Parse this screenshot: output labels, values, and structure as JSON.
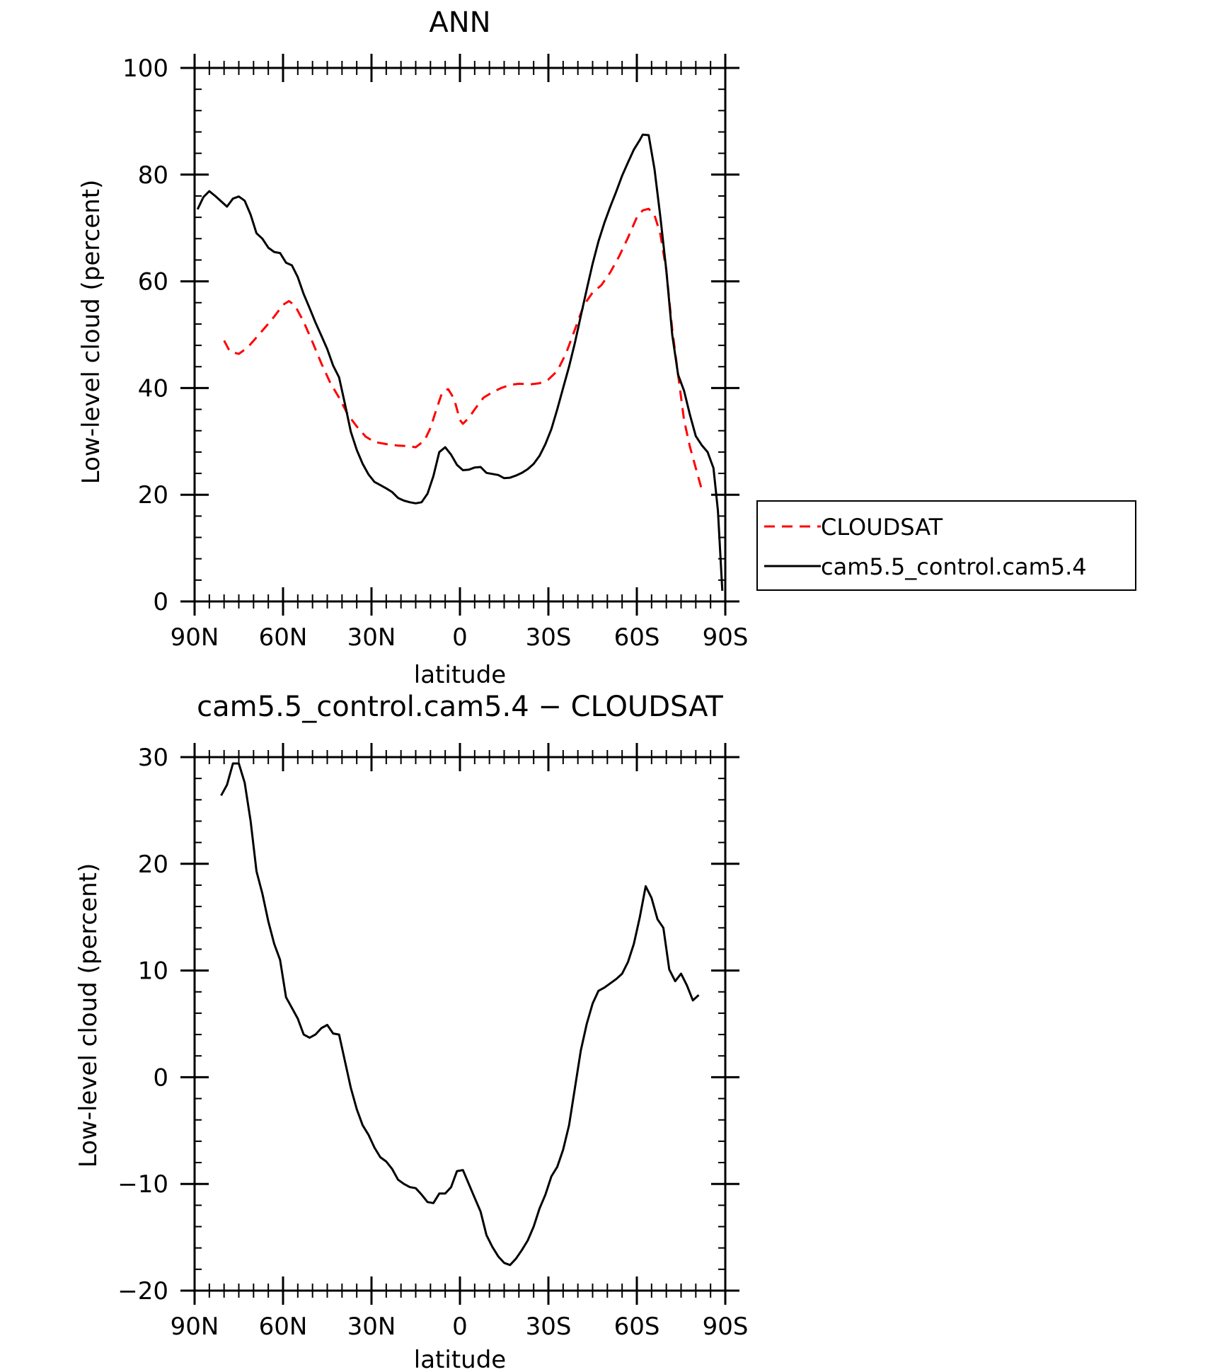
{
  "chart_data": [
    {
      "type": "line",
      "title": "ANN",
      "xlabel": "latitude",
      "ylabel": "Low-level cloud (percent)",
      "xlim": [
        90,
        -90
      ],
      "ylim": [
        0,
        100
      ],
      "x_tick_values": [
        90,
        60,
        30,
        0,
        -30,
        -60,
        -90
      ],
      "x_tick_labels": [
        "90N",
        "60N",
        "30N",
        "0",
        "30S",
        "60S",
        "90S"
      ],
      "y_ticks": [
        0,
        20,
        40,
        60,
        80,
        100
      ],
      "legend_position": "right",
      "series": [
        {
          "name": "CLOUDSAT",
          "color": "#ff0000",
          "dash": "dashed",
          "points": [
            [
              80,
              48.9
            ],
            [
              78,
              46.8
            ],
            [
              75,
              46.4
            ],
            [
              72,
              47.6
            ],
            [
              69,
              49.5
            ],
            [
              66,
              51.4
            ],
            [
              63,
              53.4
            ],
            [
              60,
              55.6
            ],
            [
              58,
              56.3
            ],
            [
              56,
              55.5
            ],
            [
              53,
              52.4
            ],
            [
              50,
              48.6
            ],
            [
              47,
              44.6
            ],
            [
              44,
              41.0
            ],
            [
              41,
              38.2
            ],
            [
              38,
              35.0
            ],
            [
              35,
              32.8
            ],
            [
              32,
              30.9
            ],
            [
              29,
              29.9
            ],
            [
              25,
              29.5
            ],
            [
              21,
              29.2
            ],
            [
              17,
              29.1
            ],
            [
              15,
              28.9
            ],
            [
              12,
              30.2
            ],
            [
              10,
              32.5
            ],
            [
              8,
              36.0
            ],
            [
              6,
              39.2
            ],
            [
              4,
              39.8
            ],
            [
              2,
              38.0
            ],
            [
              0,
              34.0
            ],
            [
              -1,
              33.3
            ],
            [
              -3,
              34.4
            ],
            [
              -5,
              36.0
            ],
            [
              -8,
              38.2
            ],
            [
              -11,
              39.2
            ],
            [
              -14,
              40.0
            ],
            [
              -17,
              40.6
            ],
            [
              -20,
              40.8
            ],
            [
              -24,
              40.7
            ],
            [
              -27,
              40.9
            ],
            [
              -30,
              41.6
            ],
            [
              -33,
              43.2
            ],
            [
              -36,
              46.5
            ],
            [
              -39,
              51.0
            ],
            [
              -42,
              55.5
            ],
            [
              -45,
              57.9
            ],
            [
              -48,
              59.3
            ],
            [
              -51,
              61.7
            ],
            [
              -54,
              64.7
            ],
            [
              -57,
              68.2
            ],
            [
              -60,
              72.0
            ],
            [
              -62,
              73.3
            ],
            [
              -64,
              73.6
            ],
            [
              -66,
              72.4
            ],
            [
              -68,
              68.8
            ],
            [
              -70,
              62.0
            ],
            [
              -72,
              51.0
            ],
            [
              -74,
              42.5
            ],
            [
              -76,
              34.0
            ],
            [
              -78,
              29.0
            ],
            [
              -80,
              25.0
            ],
            [
              -82,
              21.0
            ]
          ]
        },
        {
          "name": "cam5.5_control.cam5.4",
          "color": "#000000",
          "dash": "solid",
          "points": [
            [
              89,
              73.5
            ],
            [
              87,
              75.8
            ],
            [
              85,
              76.9
            ],
            [
              83,
              76.0
            ],
            [
              81,
              75.0
            ],
            [
              79,
              74.0
            ],
            [
              77,
              75.5
            ],
            [
              75,
              75.9
            ],
            [
              73,
              75.1
            ],
            [
              71,
              72.5
            ],
            [
              69,
              69.0
            ],
            [
              67,
              68.0
            ],
            [
              65,
              66.3
            ],
            [
              63,
              65.5
            ],
            [
              61,
              65.3
            ],
            [
              59,
              63.5
            ],
            [
              57,
              63.0
            ],
            [
              55,
              60.8
            ],
            [
              53,
              57.6
            ],
            [
              51,
              55.0
            ],
            [
              49,
              52.3
            ],
            [
              47,
              49.8
            ],
            [
              45,
              47.3
            ],
            [
              43,
              44.2
            ],
            [
              41,
              42.0
            ],
            [
              39,
              37.0
            ],
            [
              37,
              31.8
            ],
            [
              35,
              28.4
            ],
            [
              33,
              25.8
            ],
            [
              31,
              23.8
            ],
            [
              29,
              22.4
            ],
            [
              27,
              21.8
            ],
            [
              25,
              21.2
            ],
            [
              23,
              20.5
            ],
            [
              21,
              19.4
            ],
            [
              19,
              18.9
            ],
            [
              17,
              18.6
            ],
            [
              15,
              18.4
            ],
            [
              13,
              18.6
            ],
            [
              11,
              20.2
            ],
            [
              9,
              23.5
            ],
            [
              7,
              28.0
            ],
            [
              5,
              28.9
            ],
            [
              3,
              27.5
            ],
            [
              1,
              25.6
            ],
            [
              -1,
              24.6
            ],
            [
              -3,
              24.7
            ],
            [
              -5,
              25.1
            ],
            [
              -7,
              25.2
            ],
            [
              -9,
              24.1
            ],
            [
              -11,
              23.9
            ],
            [
              -13,
              23.7
            ],
            [
              -15,
              23.1
            ],
            [
              -17,
              23.2
            ],
            [
              -19,
              23.6
            ],
            [
              -21,
              24.1
            ],
            [
              -23,
              24.8
            ],
            [
              -25,
              25.8
            ],
            [
              -27,
              27.3
            ],
            [
              -29,
              29.5
            ],
            [
              -31,
              32.3
            ],
            [
              -33,
              36.0
            ],
            [
              -35,
              40.0
            ],
            [
              -37,
              44.0
            ],
            [
              -39,
              48.5
            ],
            [
              -41,
              53.5
            ],
            [
              -43,
              58.5
            ],
            [
              -45,
              63.3
            ],
            [
              -47,
              67.5
            ],
            [
              -49,
              71.0
            ],
            [
              -51,
              74.0
            ],
            [
              -53,
              76.8
            ],
            [
              -55,
              79.8
            ],
            [
              -57,
              82.3
            ],
            [
              -59,
              84.7
            ],
            [
              -61,
              86.5
            ],
            [
              -62,
              87.5
            ],
            [
              -64,
              87.4
            ],
            [
              -66,
              81.0
            ],
            [
              -68,
              72.0
            ],
            [
              -70,
              62.0
            ],
            [
              -72,
              50.0
            ],
            [
              -74,
              42.5
            ],
            [
              -76,
              39.5
            ],
            [
              -78,
              35.0
            ],
            [
              -80,
              31.0
            ],
            [
              -82,
              29.3
            ],
            [
              -84,
              28.0
            ],
            [
              -86,
              25.0
            ],
            [
              -87.5,
              17.0
            ],
            [
              -89,
              2.0
            ]
          ]
        }
      ]
    },
    {
      "type": "line",
      "title": "cam5.5_control.cam5.4 − CLOUDSAT",
      "xlabel": "latitude",
      "ylabel": "Low-level cloud (percent)",
      "xlim": [
        90,
        -90
      ],
      "ylim": [
        -20,
        30
      ],
      "x_tick_values": [
        90,
        60,
        30,
        0,
        -30,
        -60,
        -90
      ],
      "x_tick_labels": [
        "90N",
        "60N",
        "30N",
        "0",
        "30S",
        "60S",
        "90S"
      ],
      "y_ticks": [
        -20,
        -10,
        0,
        10,
        20,
        30
      ],
      "y_tick_labels": [
        "−20",
        "−10",
        "0",
        "10",
        "20",
        "30"
      ],
      "series": [
        {
          "color": "#000000",
          "dash": "solid",
          "points": [
            [
              81,
              26.4
            ],
            [
              79,
              27.4
            ],
            [
              77,
              29.4
            ],
            [
              75,
              29.4
            ],
            [
              73,
              27.6
            ],
            [
              71,
              24.0
            ],
            [
              69,
              19.3
            ],
            [
              67,
              17.2
            ],
            [
              65,
              14.6
            ],
            [
              63,
              12.5
            ],
            [
              61,
              11.0
            ],
            [
              59,
              7.5
            ],
            [
              57,
              6.5
            ],
            [
              55,
              5.5
            ],
            [
              53,
              4.0
            ],
            [
              51,
              3.7
            ],
            [
              49,
              4.0
            ],
            [
              47,
              4.6
            ],
            [
              45,
              4.9
            ],
            [
              43,
              4.1
            ],
            [
              41,
              4.0
            ],
            [
              39,
              1.5
            ],
            [
              37,
              -1.0
            ],
            [
              35,
              -3.0
            ],
            [
              33,
              -4.5
            ],
            [
              31,
              -5.4
            ],
            [
              29,
              -6.6
            ],
            [
              27,
              -7.5
            ],
            [
              25,
              -7.9
            ],
            [
              23,
              -8.6
            ],
            [
              21,
              -9.6
            ],
            [
              19,
              -10.0
            ],
            [
              17,
              -10.3
            ],
            [
              15,
              -10.4
            ],
            [
              13,
              -11.0
            ],
            [
              11,
              -11.7
            ],
            [
              9,
              -11.8
            ],
            [
              7,
              -10.9
            ],
            [
              5,
              -10.9
            ],
            [
              3,
              -10.3
            ],
            [
              1,
              -8.8
            ],
            [
              -1,
              -8.7
            ],
            [
              -3,
              -10.0
            ],
            [
              -5,
              -11.3
            ],
            [
              -7,
              -12.6
            ],
            [
              -9,
              -14.8
            ],
            [
              -11,
              -15.9
            ],
            [
              -13,
              -16.8
            ],
            [
              -15,
              -17.4
            ],
            [
              -17,
              -17.6
            ],
            [
              -19,
              -17.0
            ],
            [
              -21,
              -16.2
            ],
            [
              -23,
              -15.3
            ],
            [
              -25,
              -14.0
            ],
            [
              -27,
              -12.3
            ],
            [
              -29,
              -11.0
            ],
            [
              -31,
              -9.3
            ],
            [
              -33,
              -8.4
            ],
            [
              -35,
              -6.8
            ],
            [
              -37,
              -4.5
            ],
            [
              -39,
              -1.0
            ],
            [
              -41,
              2.5
            ],
            [
              -43,
              5.0
            ],
            [
              -45,
              6.9
            ],
            [
              -47,
              8.1
            ],
            [
              -49,
              8.4
            ],
            [
              -51,
              8.8
            ],
            [
              -53,
              9.2
            ],
            [
              -55,
              9.7
            ],
            [
              -57,
              10.8
            ],
            [
              -59,
              12.5
            ],
            [
              -61,
              15.0
            ],
            [
              -63,
              17.9
            ],
            [
              -65,
              16.8
            ],
            [
              -67,
              14.8
            ],
            [
              -69,
              14.0
            ],
            [
              -71,
              10.1
            ],
            [
              -73,
              9.0
            ],
            [
              -75,
              9.7
            ],
            [
              -77,
              8.6
            ],
            [
              -79,
              7.2
            ],
            [
              -81,
              7.7
            ]
          ]
        }
      ]
    }
  ]
}
